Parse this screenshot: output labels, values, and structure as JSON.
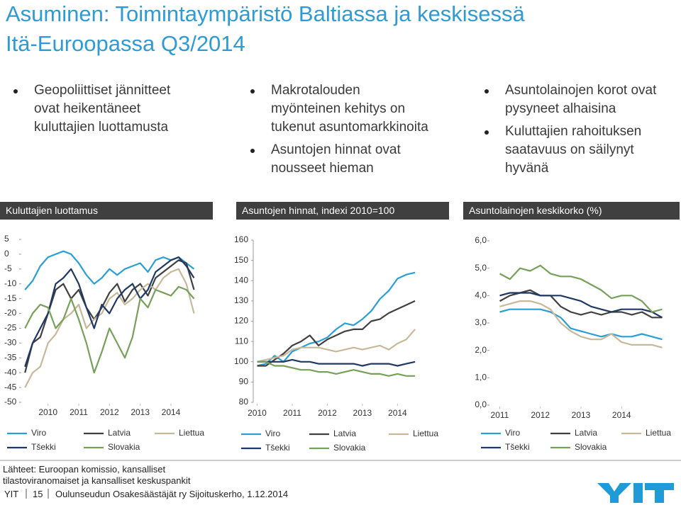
{
  "title": [
    "Asuminen: Toimintaympäristö Baltiassa ja keskisessä",
    "Itä-Euroopassa Q3/2014"
  ],
  "bullets": [
    [
      "Geopoliittiset jännitteet ovat heikentäneet kuluttajien luottamusta"
    ],
    [
      "Makrotalouden myönteinen kehitys on tukenut asuntomarkkinoita",
      "Asuntojen hinnat ovat nousseet hieman"
    ],
    [
      "Asuntolainojen korot ovat pysyneet alhaisina",
      "Kuluttajien rahoituksen saatavuus on säilynyt hyvänä"
    ]
  ],
  "chart_data": [
    {
      "type": "line",
      "title": "Kuluttajien luottamus",
      "x": [
        2009.25,
        2009.5,
        2009.75,
        2010,
        2010.25,
        2010.5,
        2010.75,
        2011,
        2011.25,
        2011.5,
        2011.75,
        2012,
        2012.25,
        2012.5,
        2012.75,
        2013,
        2013.25,
        2013.5,
        2013.75,
        2014,
        2014.25,
        2014.5,
        2014.75
      ],
      "xlim": [
        2009.2,
        2014.9
      ],
      "xticks": [
        2010,
        2011,
        2012,
        2013,
        2014
      ],
      "ylim": [
        -50,
        5
      ],
      "yticks": [
        5,
        0,
        -5,
        -10,
        -15,
        -20,
        -25,
        -30,
        -35,
        -40,
        -45,
        -50
      ],
      "series": [
        {
          "name": "Viro",
          "color": "#2a9fd6",
          "values": [
            -12,
            -9,
            -4,
            -1,
            0,
            1,
            0,
            -3,
            -7,
            -10,
            -8,
            -5,
            -7,
            -5,
            -4,
            -3,
            -6,
            -2,
            -1,
            -2,
            -1,
            -3,
            -5
          ]
        },
        {
          "name": "Latvia",
          "color": "#404040",
          "values": [
            -40,
            -30,
            -28,
            -20,
            -12,
            -10,
            -15,
            -12,
            -18,
            -22,
            -18,
            -13,
            -10,
            -16,
            -12,
            -10,
            -14,
            -8,
            -6,
            -4,
            -2,
            -3,
            -12
          ]
        },
        {
          "name": "Liettua",
          "color": "#c8b89a",
          "values": [
            -45,
            -40,
            -38,
            -30,
            -27,
            -22,
            -20,
            -17,
            -25,
            -22,
            -20,
            -15,
            -13,
            -17,
            -15,
            -12,
            -10,
            -12,
            -8,
            -6,
            -5,
            -10,
            -20
          ]
        },
        {
          "name": "Tšekki",
          "color": "#1f3864",
          "values": [
            -38,
            -30,
            -25,
            -20,
            -10,
            -8,
            -5,
            -10,
            -18,
            -25,
            -17,
            -20,
            -15,
            -12,
            -10,
            -15,
            -12,
            -6,
            -4,
            -2,
            -1,
            -4,
            -8
          ]
        },
        {
          "name": "Slovakia",
          "color": "#77a05a",
          "values": [
            -25,
            -20,
            -17,
            -18,
            -25,
            -22,
            -15,
            -22,
            -30,
            -40,
            -33,
            -25,
            -30,
            -35,
            -28,
            -15,
            -18,
            -12,
            -13,
            -14,
            -11,
            -12,
            -15
          ]
        }
      ]
    },
    {
      "type": "line",
      "title": "Asuntojen hinnat, indexi 2010=100",
      "x": [
        2010,
        2010.25,
        2010.5,
        2010.75,
        2011,
        2011.25,
        2011.5,
        2011.75,
        2012,
        2012.25,
        2012.5,
        2012.75,
        2013,
        2013.25,
        2013.5,
        2013.75,
        2014,
        2014.25,
        2014.5
      ],
      "xlim": [
        2009.95,
        2014.7
      ],
      "xticks": [
        2010,
        2011,
        2012,
        2013,
        2014
      ],
      "ylim": [
        80,
        160
      ],
      "yticks": [
        160,
        150,
        140,
        130,
        120,
        110,
        100,
        90,
        80
      ],
      "series": [
        {
          "name": "Viro",
          "color": "#2a9fd6",
          "values": [
            98,
            99,
            103,
            100,
            105,
            107,
            109,
            110,
            112,
            116,
            119,
            118,
            121,
            125,
            131,
            135,
            141,
            143,
            144
          ]
        },
        {
          "name": "Latvia",
          "color": "#404040",
          "values": [
            98,
            98,
            101,
            104,
            108,
            110,
            113,
            108,
            111,
            113,
            115,
            116,
            116,
            120,
            121,
            124,
            126,
            128,
            130
          ]
        },
        {
          "name": "Liettua",
          "color": "#c8b89a",
          "values": [
            100,
            101,
            102,
            103,
            106,
            107,
            107,
            107,
            106,
            105,
            106,
            107,
            106,
            107,
            108,
            106,
            109,
            111,
            116
          ]
        },
        {
          "name": "Tšekki",
          "color": "#1f3864",
          "values": [
            100,
            100,
            100,
            100,
            101,
            100,
            100,
            99,
            99,
            99,
            99,
            99,
            98,
            99,
            99,
            99,
            98,
            99,
            100
          ]
        },
        {
          "name": "Slovakia",
          "color": "#77a05a",
          "values": [
            100,
            100,
            98,
            98,
            97,
            96,
            96,
            95,
            95,
            94,
            95,
            96,
            95,
            94,
            94,
            93,
            94,
            93,
            93
          ]
        }
      ]
    },
    {
      "type": "line",
      "title": "Asuntolainojen keskikorko (%)",
      "x": [
        2011,
        2011.25,
        2011.5,
        2011.75,
        2012,
        2012.25,
        2012.5,
        2012.75,
        2013,
        2013.25,
        2013.5,
        2013.75,
        2014,
        2014.25,
        2014.5,
        2014.75,
        2015
      ],
      "xlim": [
        2010.8,
        2015.2
      ],
      "xticks": [
        2011,
        2012,
        2013,
        2014
      ],
      "ylim": [
        0,
        6
      ],
      "yticks": [
        {
          "value": 6,
          "label": "6,0"
        },
        {
          "value": 5,
          "label": "5,0"
        },
        {
          "value": 4,
          "label": "4,0"
        },
        {
          "value": 3,
          "label": "3,0"
        },
        {
          "value": 2,
          "label": "2,0"
        },
        {
          "value": 1,
          "label": "1,0"
        },
        {
          "value": 0,
          "label": "0,0"
        }
      ],
      "series": [
        {
          "name": "Viro",
          "color": "#2a9fd6",
          "values": [
            3.4,
            3.5,
            3.5,
            3.5,
            3.5,
            3.4,
            3.2,
            2.8,
            2.7,
            2.6,
            2.5,
            2.6,
            2.5,
            2.5,
            2.6,
            2.5,
            2.4
          ]
        },
        {
          "name": "Latvia",
          "color": "#404040",
          "values": [
            3.8,
            4.0,
            4.1,
            4.2,
            4.0,
            4.0,
            3.6,
            3.4,
            3.3,
            3.4,
            3.3,
            3.4,
            3.4,
            3.3,
            3.4,
            3.2,
            3.2
          ]
        },
        {
          "name": "Liettua",
          "color": "#c8b89a",
          "values": [
            3.6,
            3.7,
            3.8,
            3.8,
            3.7,
            3.5,
            3.0,
            2.7,
            2.5,
            2.4,
            2.4,
            2.6,
            2.3,
            2.2,
            2.2,
            2.2,
            2.1
          ]
        },
        {
          "name": "Tšekki",
          "color": "#1f3864",
          "values": [
            4.0,
            4.1,
            4.1,
            4.1,
            4.0,
            4.0,
            4.0,
            3.9,
            3.8,
            3.6,
            3.5,
            3.4,
            3.5,
            3.5,
            3.5,
            3.4,
            3.2
          ]
        },
        {
          "name": "Slovakia",
          "color": "#77a05a",
          "values": [
            4.8,
            4.6,
            5.0,
            4.9,
            5.1,
            4.8,
            4.7,
            4.7,
            4.6,
            4.4,
            4.2,
            3.9,
            4.0,
            4.0,
            3.8,
            3.4,
            3.5
          ]
        }
      ]
    }
  ],
  "footer": {
    "source": "Lähteet: Euroopan komissio, kansalliset tilastoviranomaiset ja kansalliset keskuspankit",
    "company": "YIT",
    "page": "15",
    "event": "Oulunseudun Osakesäästäjät ry Sijoituskerho, 1.12.2014"
  }
}
